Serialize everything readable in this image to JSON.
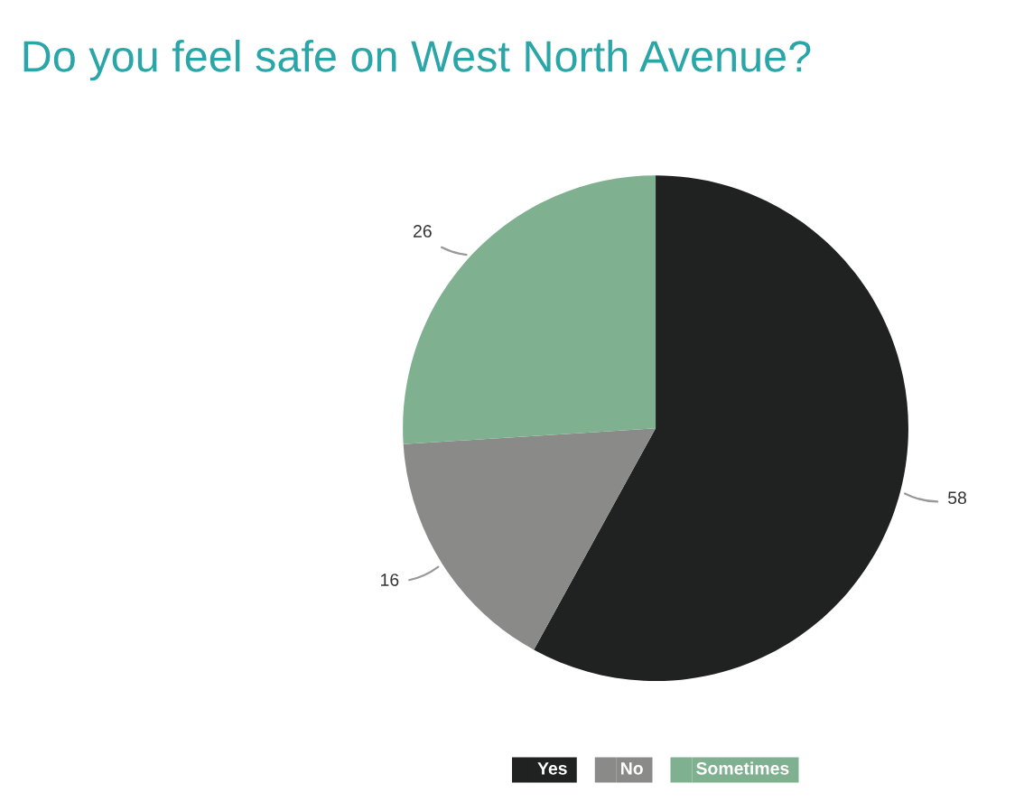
{
  "chart_data": {
    "type": "pie",
    "title": "Do you feel safe on West North Avenue?",
    "categories": [
      "Yes",
      "No",
      "Sometimes"
    ],
    "values": [
      58,
      16,
      26
    ],
    "colors": [
      "#1f2221",
      "#8a8b89",
      "#7fb08f"
    ],
    "data_labels": true,
    "legend": "bottom"
  }
}
